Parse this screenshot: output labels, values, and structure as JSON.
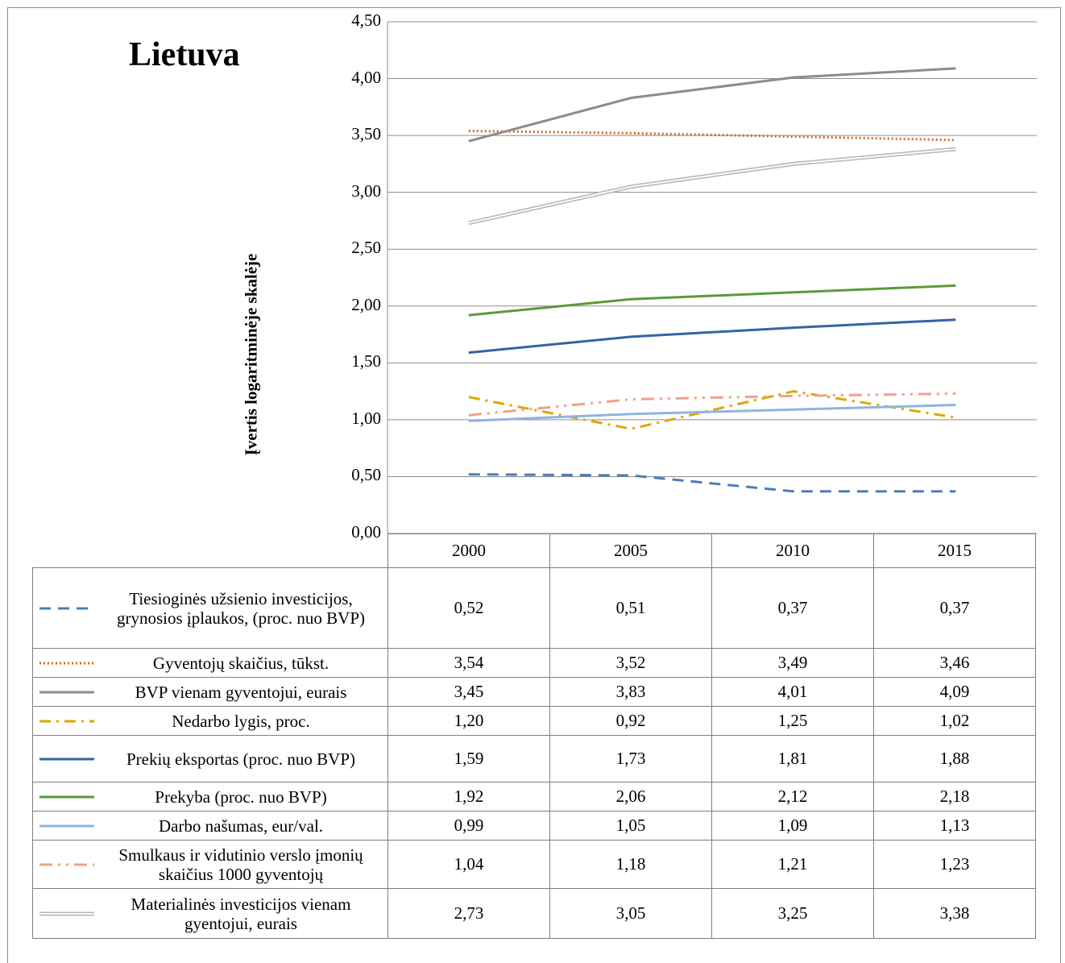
{
  "chart_data": {
    "type": "line",
    "title": "Lietuva",
    "xlabel": "",
    "ylabel": "Įvertis logaritminėje skalėje",
    "ylim": [
      0,
      4.5
    ],
    "y_ticks": [
      "0,00",
      "0,50",
      "1,00",
      "1,50",
      "2,00",
      "2,50",
      "3,00",
      "3,50",
      "4,00",
      "4,50"
    ],
    "categories": [
      "2000",
      "2005",
      "2010",
      "2015"
    ],
    "grid": true,
    "legend": "data table below chart",
    "series": [
      {
        "name": "Tiesioginės užsienio investicijos, grynosios įplaukos, (proc. nuo BVP)",
        "values": [
          0.52,
          0.51,
          0.37,
          0.37
        ],
        "labels": [
          "0,52",
          "0,51",
          "0,37",
          "0,37"
        ],
        "color": "#4a7eb8",
        "style": "dashed"
      },
      {
        "name": "Gyventojų skaičius, tūkst.",
        "values": [
          3.54,
          3.52,
          3.49,
          3.46
        ],
        "labels": [
          "3,54",
          "3,52",
          "3,49",
          "3,46"
        ],
        "color": "#d0692a",
        "style": "dotted"
      },
      {
        "name": "BVP vienam gyventojui, eurais",
        "values": [
          3.45,
          3.83,
          4.01,
          4.09
        ],
        "labels": [
          "3,45",
          "3,83",
          "4,01",
          "4,09"
        ],
        "color": "#8c8c8c",
        "style": "solid"
      },
      {
        "name": "Nedarbo lygis, proc.",
        "values": [
          1.2,
          0.92,
          1.25,
          1.02
        ],
        "labels": [
          "1,20",
          "0,92",
          "1,25",
          "1,02"
        ],
        "color": "#dca800",
        "style": "dashdot"
      },
      {
        "name": "Prekių eksportas (proc. nuo BVP)",
        "values": [
          1.59,
          1.73,
          1.81,
          1.88
        ],
        "labels": [
          "1,59",
          "1,73",
          "1,81",
          "1,88"
        ],
        "color": "#3562a8",
        "style": "solid"
      },
      {
        "name": "Prekyba (proc. nuo BVP)",
        "values": [
          1.92,
          2.06,
          2.12,
          2.18
        ],
        "labels": [
          "1,92",
          "2,06",
          "2,12",
          "2,18"
        ],
        "color": "#5a9a3a",
        "style": "solid"
      },
      {
        "name": "Darbo našumas, eur/val.",
        "values": [
          0.99,
          1.05,
          1.09,
          1.13
        ],
        "labels": [
          "0,99",
          "1,05",
          "1,09",
          "1,13"
        ],
        "color": "#8fb4e0",
        "style": "solid"
      },
      {
        "name": "Smulkaus ir vidutinio verslo įmonių skaičius 1000 gyventojų",
        "values": [
          1.04,
          1.18,
          1.21,
          1.23
        ],
        "labels": [
          "1,04",
          "1,18",
          "1,21",
          "1,23"
        ],
        "color": "#f0a088",
        "style": "dashdotdot"
      },
      {
        "name": "Materialinės investicijos vienam gyentojui, eurais",
        "values": [
          2.73,
          3.05,
          3.25,
          3.38
        ],
        "labels": [
          "2,73",
          "3,05",
          "3,25",
          "3,38"
        ],
        "color": "#b8b8b8",
        "style": "double"
      }
    ]
  }
}
